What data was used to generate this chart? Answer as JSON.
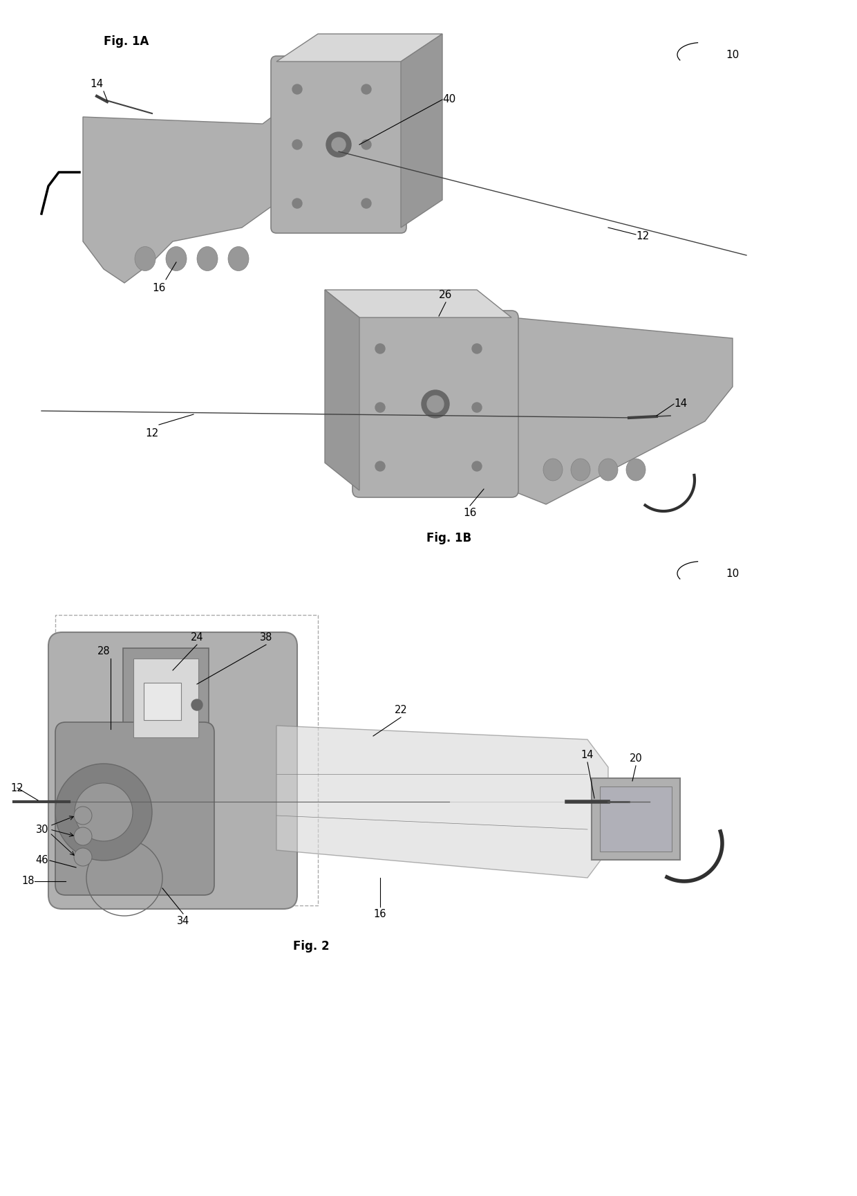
{
  "bg_color": "#ffffff",
  "fig_width": 12.4,
  "fig_height": 17.29,
  "dpi": 100,
  "g1": "#c8c8c8",
  "g2": "#b0b0b0",
  "g3": "#989898",
  "g4": "#808080",
  "g5": "#686868",
  "g6": "#d8d8d8",
  "g7": "#e8e8e8",
  "fig1a_label": "Fig. 1A",
  "fig1b_label": "Fig. 1B",
  "fig2_label": "Fig. 2",
  "label_10_1": "10",
  "label_10_2": "10"
}
